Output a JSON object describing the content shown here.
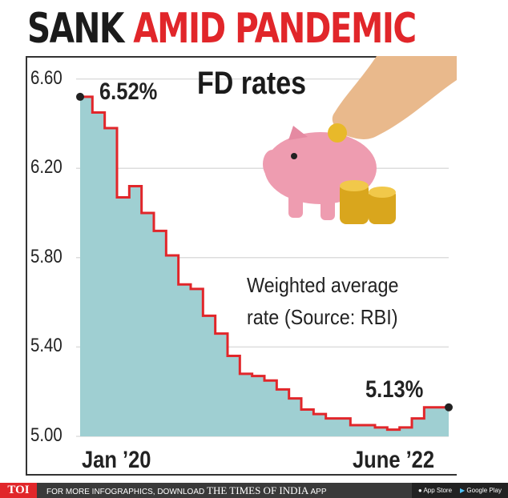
{
  "headline": {
    "part1": "SANK",
    "part2": "AMID PANDEMIC"
  },
  "title": "FD rates",
  "note": {
    "line1": "Weighted average",
    "line2": "rate (Source: RBI)"
  },
  "footer": {
    "brand": "TOI",
    "text": "FOR MORE INFOGRAPHICS, DOWNLOAD",
    "paper": "THE TIMES OF INDIA",
    "app": "APP",
    "appstore": "App Store",
    "googleplay": "Google Play"
  },
  "colors": {
    "fill": "#9fcfd2",
    "line": "#e1262a",
    "red": "#e1262a"
  },
  "chart_data": {
    "type": "area",
    "title": "FD rates",
    "subtitle": "Weighted average rate (Source: RBI)",
    "xlabel": "",
    "ylabel": "",
    "x_tick_labels": [
      "Jan ’20",
      "June ’22"
    ],
    "y_ticks": [
      "6.60",
      "6.20",
      "5.80",
      "5.40",
      "5.00"
    ],
    "ylim": [
      5.0,
      6.6
    ],
    "grid": true,
    "annotations": {
      "start": "6.52%",
      "end": "5.13%"
    },
    "values": [
      6.52,
      6.45,
      6.38,
      6.07,
      6.12,
      6.0,
      5.92,
      5.81,
      5.68,
      5.66,
      5.54,
      5.46,
      5.36,
      5.28,
      5.27,
      5.25,
      5.21,
      5.17,
      5.12,
      5.1,
      5.08,
      5.08,
      5.05,
      5.05,
      5.04,
      5.03,
      5.04,
      5.08,
      5.13,
      5.13
    ]
  }
}
